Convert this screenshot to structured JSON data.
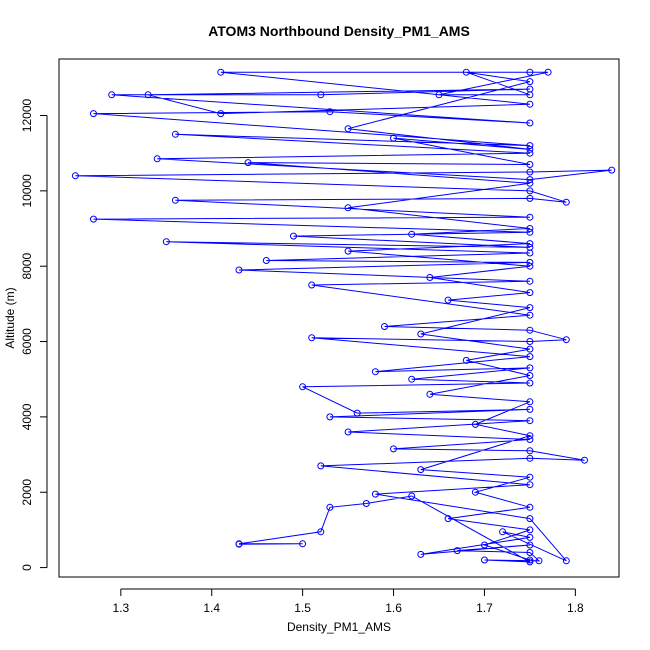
{
  "chart_data": {
    "type": "scatter",
    "title": "ATOM3 Northbound Density_PM1_AMS",
    "xlabel": "Density_PM1_AMS",
    "ylabel": "Altitude (m)",
    "xlim": [
      1.232,
      1.848
    ],
    "ylim": [
      -250,
      13500
    ],
    "xticks": [
      1.3,
      1.4,
      1.5,
      1.6,
      1.7,
      1.8
    ],
    "yticks": [
      0,
      2000,
      4000,
      6000,
      8000,
      10000,
      12000
    ],
    "xtick_labels": [
      "1.3",
      "1.4",
      "1.5",
      "1.6",
      "1.7",
      "1.8"
    ],
    "ytick_labels": [
      "0",
      "2000",
      "4000",
      "6000",
      "8000",
      "10000",
      "12000"
    ],
    "marker": "open-circle",
    "connected": true,
    "color": "#0000ff",
    "grid": false,
    "series": [
      {
        "points": [
          [
            1.43,
            620
          ],
          [
            1.5,
            630
          ],
          [
            1.43,
            630
          ],
          [
            1.52,
            950
          ],
          [
            1.53,
            1600
          ],
          [
            1.57,
            1700
          ],
          [
            1.62,
            1900
          ],
          [
            1.75,
            150
          ],
          [
            1.7,
            200
          ],
          [
            1.76,
            180
          ],
          [
            1.75,
            400
          ],
          [
            1.67,
            450
          ],
          [
            1.75,
            600
          ],
          [
            1.63,
            350
          ],
          [
            1.75,
            800
          ],
          [
            1.72,
            950
          ],
          [
            1.79,
            180
          ],
          [
            1.75,
            1300
          ],
          [
            1.58,
            1950
          ],
          [
            1.75,
            2200
          ],
          [
            1.52,
            2700
          ],
          [
            1.75,
            2900
          ],
          [
            1.81,
            2850
          ],
          [
            1.75,
            3100
          ],
          [
            1.6,
            3150
          ],
          [
            1.75,
            3400
          ],
          [
            1.55,
            3600
          ],
          [
            1.75,
            3900
          ],
          [
            1.53,
            4000
          ],
          [
            1.75,
            4200
          ],
          [
            1.56,
            4100
          ],
          [
            1.5,
            4800
          ],
          [
            1.75,
            4900
          ],
          [
            1.62,
            5000
          ],
          [
            1.75,
            5300
          ],
          [
            1.58,
            5200
          ],
          [
            1.75,
            5600
          ],
          [
            1.51,
            6100
          ],
          [
            1.75,
            6000
          ],
          [
            1.79,
            6050
          ],
          [
            1.75,
            6300
          ],
          [
            1.59,
            6400
          ],
          [
            1.75,
            6700
          ],
          [
            1.51,
            7500
          ],
          [
            1.75,
            7600
          ],
          [
            1.43,
            7900
          ],
          [
            1.75,
            8100
          ],
          [
            1.46,
            8150
          ],
          [
            1.75,
            8350
          ],
          [
            1.35,
            8650
          ],
          [
            1.75,
            8500
          ],
          [
            1.49,
            8800
          ],
          [
            1.75,
            8900
          ],
          [
            1.27,
            9250
          ],
          [
            1.75,
            9300
          ],
          [
            1.36,
            9750
          ],
          [
            1.75,
            9800
          ],
          [
            1.79,
            9700
          ],
          [
            1.75,
            10000
          ],
          [
            1.25,
            10400
          ],
          [
            1.75,
            10500
          ],
          [
            1.84,
            10550
          ],
          [
            1.75,
            10300
          ],
          [
            1.34,
            10850
          ],
          [
            1.75,
            11000
          ],
          [
            1.36,
            11500
          ],
          [
            1.75,
            11200
          ],
          [
            1.27,
            12050
          ],
          [
            1.53,
            12100
          ],
          [
            1.75,
            11800
          ],
          [
            1.29,
            12550
          ],
          [
            1.52,
            12550
          ],
          [
            1.75,
            12700
          ],
          [
            1.33,
            12550
          ],
          [
            1.41,
            12050
          ],
          [
            1.75,
            12300
          ],
          [
            1.41,
            13150
          ],
          [
            1.75,
            13150
          ],
          [
            1.77,
            13150
          ],
          [
            1.65,
            12550
          ],
          [
            1.75,
            12550
          ],
          [
            1.68,
            13150
          ],
          [
            1.75,
            12900
          ],
          [
            1.55,
            11650
          ],
          [
            1.75,
            11100
          ],
          [
            1.6,
            11400
          ],
          [
            1.75,
            10700
          ],
          [
            1.44,
            10750
          ],
          [
            1.75,
            10200
          ],
          [
            1.55,
            9550
          ],
          [
            1.75,
            9000
          ],
          [
            1.62,
            8850
          ],
          [
            1.75,
            8600
          ],
          [
            1.55,
            8400
          ],
          [
            1.75,
            8000
          ],
          [
            1.64,
            7700
          ],
          [
            1.75,
            7300
          ],
          [
            1.66,
            7100
          ],
          [
            1.75,
            6900
          ],
          [
            1.63,
            6200
          ],
          [
            1.75,
            5800
          ],
          [
            1.68,
            5500
          ],
          [
            1.75,
            5100
          ],
          [
            1.64,
            4600
          ],
          [
            1.75,
            4400
          ],
          [
            1.69,
            3800
          ],
          [
            1.75,
            3500
          ],
          [
            1.63,
            2600
          ],
          [
            1.75,
            2400
          ],
          [
            1.69,
            2000
          ],
          [
            1.75,
            1600
          ],
          [
            1.66,
            1300
          ],
          [
            1.75,
            1000
          ],
          [
            1.7,
            600
          ],
          [
            1.75,
            200
          ]
        ]
      }
    ]
  }
}
